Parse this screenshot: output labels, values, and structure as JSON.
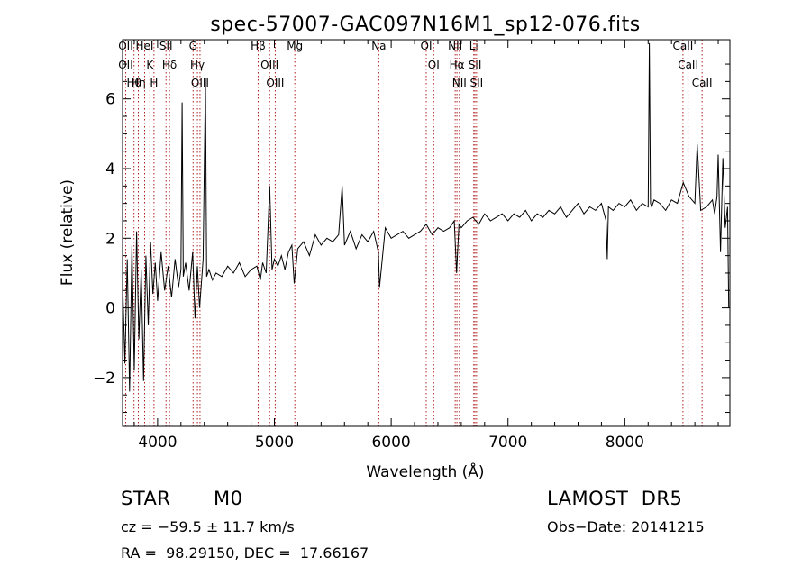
{
  "chart_data": {
    "type": "line",
    "title": "spec-57007-GAC097N16M1_sp12-076.fits",
    "xlabel": "Wavelength (Å)",
    "ylabel": "Flux (relative)",
    "xlim": [
      3700,
      8900
    ],
    "ylim": [
      -3.4,
      7.7
    ],
    "xticks": [
      4000,
      5000,
      6000,
      7000,
      8000
    ],
    "xtick_labels": [
      "4000",
      "5000",
      "6000",
      "7000",
      "8000"
    ],
    "yticks": [
      -2,
      0,
      2,
      4,
      6
    ],
    "ytick_labels": [
      "−2",
      "0",
      "2",
      "4",
      "6"
    ],
    "grid": false,
    "series": [
      {
        "x": [
          3700,
          3720,
          3740,
          3760,
          3780,
          3800,
          3820,
          3840,
          3860,
          3880,
          3900,
          3920,
          3940,
          3960,
          3980,
          4000,
          4030,
          4060,
          4090,
          4120,
          4150,
          4180,
          4200,
          4210,
          4220,
          4240,
          4270,
          4300,
          4320,
          4340,
          4360,
          4390,
          4410,
          4420,
          4440,
          4470,
          4500,
          4550,
          4600,
          4650,
          4700,
          4750,
          4800,
          4850,
          4880,
          4900,
          4930,
          4960,
          4980,
          5000,
          5030,
          5060,
          5090,
          5120,
          5150,
          5170,
          5200,
          5250,
          5300,
          5350,
          5400,
          5450,
          5500,
          5550,
          5580,
          5600,
          5650,
          5700,
          5750,
          5800,
          5850,
          5890,
          5900,
          5950,
          6000,
          6050,
          6100,
          6150,
          6200,
          6250,
          6300,
          6350,
          6400,
          6450,
          6500,
          6540,
          6560,
          6580,
          6600,
          6650,
          6700,
          6750,
          6800,
          6850,
          6900,
          6950,
          7000,
          7050,
          7100,
          7150,
          7200,
          7250,
          7300,
          7350,
          7400,
          7450,
          7500,
          7550,
          7600,
          7650,
          7700,
          7750,
          7800,
          7840,
          7850,
          7860,
          7900,
          7950,
          8000,
          8050,
          8100,
          8150,
          8200,
          8210,
          8220,
          8230,
          8250,
          8300,
          8350,
          8400,
          8450,
          8500,
          8550,
          8600,
          8620,
          8650,
          8700,
          8750,
          8770,
          8790,
          8800,
          8820,
          8840,
          8860,
          8880,
          8890
        ],
        "y": [
          0.8,
          -1.6,
          1.4,
          -2.4,
          1.8,
          -1.8,
          2.2,
          -0.9,
          1.1,
          -2.1,
          1.5,
          -0.5,
          1.9,
          0.4,
          1.3,
          0.2,
          1.6,
          0.5,
          1.2,
          0.3,
          1.4,
          0.6,
          1.1,
          5.9,
          0.9,
          1.3,
          0.5,
          1.6,
          -0.3,
          1.2,
          0.0,
          1.4,
          6.6,
          0.9,
          1.1,
          0.8,
          1.0,
          0.9,
          1.2,
          1.0,
          1.3,
          0.9,
          1.1,
          1.2,
          0.8,
          1.3,
          1.0,
          3.5,
          1.1,
          1.4,
          1.2,
          1.5,
          1.1,
          1.6,
          1.8,
          0.7,
          1.7,
          1.9,
          1.5,
          2.1,
          1.8,
          2.0,
          1.9,
          2.1,
          3.5,
          1.8,
          2.2,
          1.7,
          2.1,
          1.9,
          2.2,
          1.6,
          0.6,
          2.3,
          2.0,
          2.1,
          2.2,
          2.0,
          2.1,
          2.2,
          2.4,
          2.1,
          2.3,
          2.2,
          2.3,
          2.5,
          1.0,
          2.4,
          2.3,
          2.5,
          2.6,
          2.4,
          2.7,
          2.5,
          2.6,
          2.7,
          2.5,
          2.7,
          2.6,
          2.8,
          2.5,
          2.7,
          2.6,
          2.8,
          2.7,
          2.9,
          2.6,
          2.8,
          3.0,
          2.7,
          2.9,
          2.8,
          3.0,
          2.5,
          1.4,
          2.9,
          2.8,
          3.0,
          2.9,
          3.1,
          2.8,
          3.0,
          2.9,
          7.6,
          3.0,
          2.9,
          3.1,
          3.0,
          2.8,
          3.1,
          3.0,
          3.6,
          3.2,
          3.0,
          4.7,
          2.8,
          2.9,
          3.1,
          2.7,
          3.2,
          4.4,
          1.6,
          4.3,
          2.3,
          2.9,
          0.0
        ]
      }
    ],
    "lines": [
      {
        "x": 3727,
        "labels": [
          "OII",
          "OII"
        ]
      },
      {
        "x": 3798,
        "labels": [
          "Hθ"
        ]
      },
      {
        "x": 3835,
        "labels": [
          "Hη"
        ]
      },
      {
        "x": 3889,
        "labels": [
          "HeI"
        ]
      },
      {
        "x": 3934,
        "labels": [
          "K"
        ]
      },
      {
        "x": 3969,
        "labels": [
          "H"
        ]
      },
      {
        "x": 4072,
        "labels": [
          "SII"
        ]
      },
      {
        "x": 4102,
        "labels": [
          "Hδ"
        ]
      },
      {
        "x": 4304,
        "labels": [
          "G"
        ]
      },
      {
        "x": 4341,
        "labels": [
          "Hγ"
        ]
      },
      {
        "x": 4363,
        "labels": [
          "OIII"
        ]
      },
      {
        "x": 4861,
        "labels": [
          "Hβ"
        ]
      },
      {
        "x": 4959,
        "labels": [
          "OIII"
        ]
      },
      {
        "x": 5007,
        "labels": [
          "OIII"
        ]
      },
      {
        "x": 5175,
        "labels": [
          "Mg"
        ]
      },
      {
        "x": 5894,
        "labels": [
          "Na"
        ]
      },
      {
        "x": 6300,
        "labels": [
          "OI"
        ]
      },
      {
        "x": 6364,
        "labels": [
          "OI"
        ]
      },
      {
        "x": 6548,
        "labels": [
          "NII"
        ]
      },
      {
        "x": 6563,
        "labels": [
          "Hα"
        ]
      },
      {
        "x": 6584,
        "labels": [
          "NII"
        ]
      },
      {
        "x": 6707,
        "labels": [
          "Li"
        ]
      },
      {
        "x": 6717,
        "labels": [
          "SII"
        ]
      },
      {
        "x": 6731,
        "labels": [
          "SII"
        ]
      },
      {
        "x": 8498,
        "labels": [
          "CaII"
        ]
      },
      {
        "x": 8542,
        "labels": [
          "CaII"
        ]
      },
      {
        "x": 8662,
        "labels": [
          "CaII"
        ]
      }
    ]
  },
  "info": {
    "class": "STAR",
    "subclass": "M0",
    "survey": "LAMOST  DR5",
    "cz": "cz = −59.5 ± 11.7 km/s",
    "obs_date": "Obs−Date: 20141215",
    "coords": "RA =  98.29150, DEC =  17.66167"
  }
}
